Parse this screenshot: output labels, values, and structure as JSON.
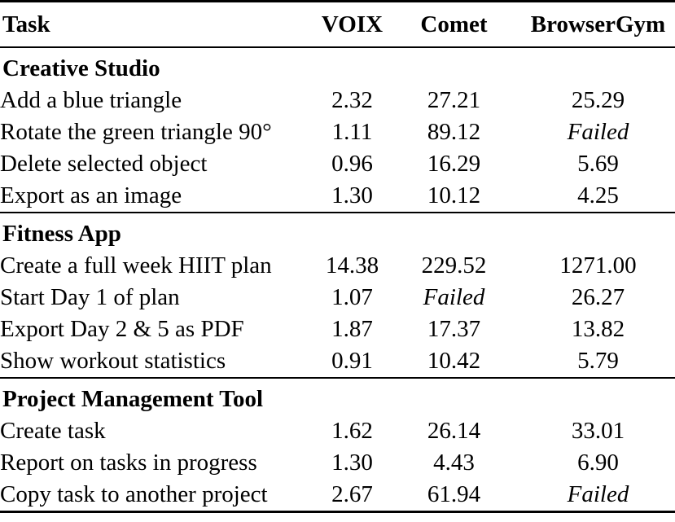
{
  "table": {
    "columns": [
      "Task",
      "VOIX",
      "Comet",
      "BrowserGym"
    ],
    "failed_label": "Failed",
    "colors": {
      "text": "#000000",
      "background": "#ffffff",
      "rule": "#000000"
    },
    "sections": [
      {
        "title": "Creative Studio",
        "rows": [
          {
            "task": "Add a blue triangle",
            "values": [
              "2.32",
              "27.21",
              "25.29"
            ]
          },
          {
            "task": "Rotate the green triangle 90°",
            "values": [
              "1.11",
              "89.12",
              "Failed"
            ]
          },
          {
            "task": "Delete selected object",
            "values": [
              "0.96",
              "16.29",
              "5.69"
            ]
          },
          {
            "task": "Export as an image",
            "values": [
              "1.30",
              "10.12",
              "4.25"
            ]
          }
        ]
      },
      {
        "title": "Fitness App",
        "rows": [
          {
            "task": "Create a full week HIIT plan",
            "values": [
              "14.38",
              "229.52",
              "1271.00"
            ]
          },
          {
            "task": "Start Day 1 of plan",
            "values": [
              "1.07",
              "Failed",
              "26.27"
            ]
          },
          {
            "task": "Export Day 2 & 5 as PDF",
            "values": [
              "1.87",
              "17.37",
              "13.82"
            ]
          },
          {
            "task": "Show workout statistics",
            "values": [
              "0.91",
              "10.42",
              "5.79"
            ]
          }
        ]
      },
      {
        "title": "Project Management Tool",
        "rows": [
          {
            "task": "Create task",
            "values": [
              "1.62",
              "26.14",
              "33.01"
            ]
          },
          {
            "task": "Report on tasks in progress",
            "values": [
              "1.30",
              "4.43",
              "6.90"
            ]
          },
          {
            "task": "Copy task to another project",
            "values": [
              "2.67",
              "61.94",
              "Failed"
            ]
          }
        ]
      }
    ]
  }
}
